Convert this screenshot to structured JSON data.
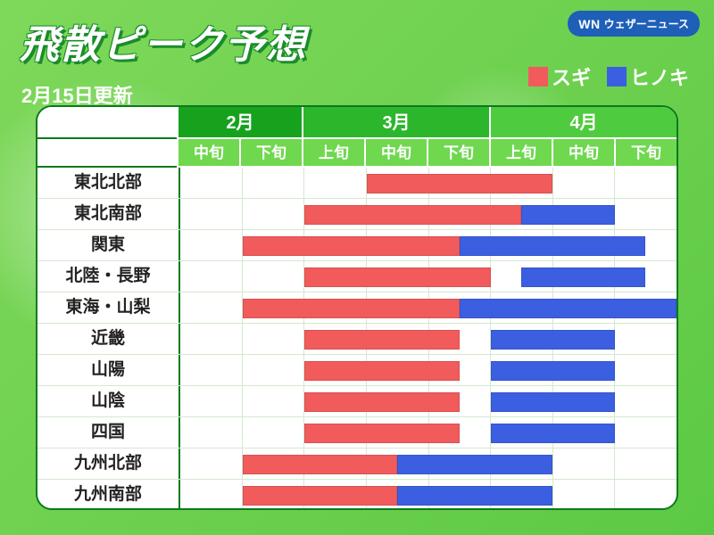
{
  "brand": {
    "abbr": "WN",
    "name": "ウェザーニュース"
  },
  "title": "飛散ピーク予想",
  "update_label": "2月15日更新",
  "legend": {
    "sugi": {
      "label": "スギ",
      "color": "#f15b5b"
    },
    "hinoki": {
      "label": "ヒノキ",
      "color": "#3b5fe0"
    }
  },
  "chart": {
    "type": "gantt",
    "background_color": "#ffffff",
    "border_color": "#0b7a1c",
    "grid_color": "#d4e8cf",
    "label_fontsize": 19,
    "header_font_color": "#ffffff",
    "columns_per_month": {
      "2月": 2,
      "3月": 3,
      "4月": 3
    },
    "total_columns": 8,
    "months": [
      {
        "label": "2月",
        "span": 2,
        "bg": "#17a21e"
      },
      {
        "label": "3月",
        "span": 3,
        "bg": "#2cb62c"
      },
      {
        "label": "4月",
        "span": 3,
        "bg": "#4fcb3f"
      }
    ],
    "periods": [
      "中旬",
      "下旬",
      "上旬",
      "中旬",
      "下旬",
      "上旬",
      "中旬",
      "下旬"
    ],
    "period_bg": "#6fd84f",
    "regions": [
      {
        "name": "東北北部",
        "bars": [
          {
            "kind": "sugi",
            "start": 3,
            "end": 6
          }
        ]
      },
      {
        "name": "東北南部",
        "bars": [
          {
            "kind": "sugi",
            "start": 2,
            "end": 5.5
          },
          {
            "kind": "hinoki",
            "start": 5.5,
            "end": 7
          }
        ]
      },
      {
        "name": "関東",
        "bars": [
          {
            "kind": "sugi",
            "start": 1,
            "end": 4.5
          },
          {
            "kind": "hinoki",
            "start": 4.5,
            "end": 7.5
          }
        ]
      },
      {
        "name": "北陸・長野",
        "bars": [
          {
            "kind": "sugi",
            "start": 2,
            "end": 5
          },
          {
            "kind": "hinoki",
            "start": 5.5,
            "end": 7.5
          }
        ]
      },
      {
        "name": "東海・山梨",
        "bars": [
          {
            "kind": "sugi",
            "start": 1,
            "end": 4.5
          },
          {
            "kind": "hinoki",
            "start": 4.5,
            "end": 8
          }
        ]
      },
      {
        "name": "近畿",
        "bars": [
          {
            "kind": "sugi",
            "start": 2,
            "end": 4.5
          },
          {
            "kind": "hinoki",
            "start": 5,
            "end": 7
          }
        ]
      },
      {
        "name": "山陽",
        "bars": [
          {
            "kind": "sugi",
            "start": 2,
            "end": 4.5
          },
          {
            "kind": "hinoki",
            "start": 5,
            "end": 7
          }
        ]
      },
      {
        "name": "山陰",
        "bars": [
          {
            "kind": "sugi",
            "start": 2,
            "end": 4.5
          },
          {
            "kind": "hinoki",
            "start": 5,
            "end": 7
          }
        ]
      },
      {
        "name": "四国",
        "bars": [
          {
            "kind": "sugi",
            "start": 2,
            "end": 4.5
          },
          {
            "kind": "hinoki",
            "start": 5,
            "end": 7
          }
        ]
      },
      {
        "name": "九州北部",
        "bars": [
          {
            "kind": "sugi",
            "start": 1,
            "end": 3.5
          },
          {
            "kind": "hinoki",
            "start": 3.5,
            "end": 6
          }
        ]
      },
      {
        "name": "九州南部",
        "bars": [
          {
            "kind": "sugi",
            "start": 1,
            "end": 3.5
          },
          {
            "kind": "hinoki",
            "start": 3.5,
            "end": 6
          }
        ]
      }
    ]
  }
}
